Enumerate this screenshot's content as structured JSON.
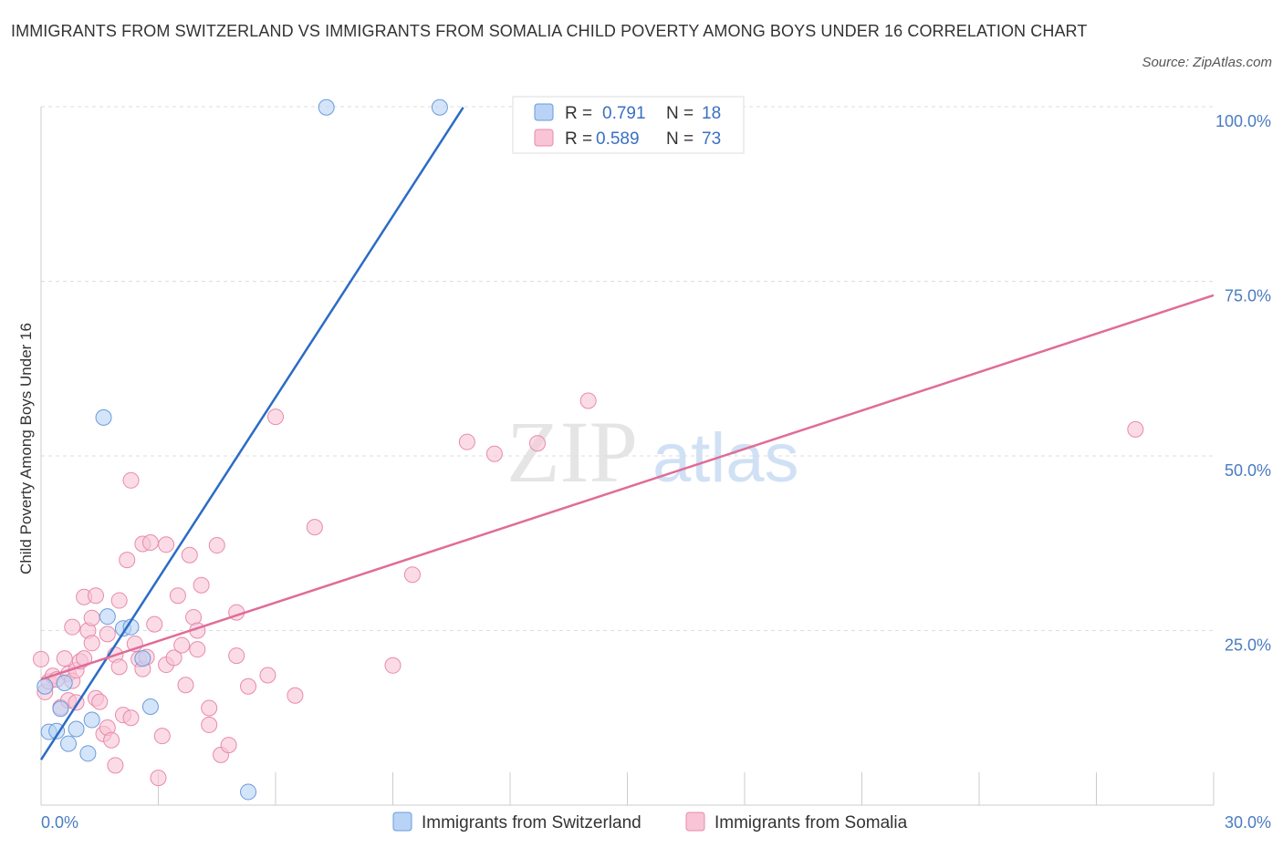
{
  "header": {
    "title": "IMMIGRANTS FROM SWITZERLAND VS IMMIGRANTS FROM SOMALIA CHILD POVERTY AMONG BOYS UNDER 16 CORRELATION CHART",
    "source": "Source: ZipAtlas.com"
  },
  "watermark": {
    "zip": "ZIP",
    "atlas": "atlas"
  },
  "colors": {
    "blue_fill": "#b8d3f5",
    "blue_stroke": "#6a9bdc",
    "blue_line": "#2b6cc4",
    "pink_fill": "#f8c4d6",
    "pink_stroke": "#e88aab",
    "pink_line": "#e06c98",
    "grid": "#dddddd",
    "tick_text": "#4a7cc0"
  },
  "legend_box": {
    "rows": [
      {
        "r_label": "R =",
        "r_value": "0.791",
        "n_label": "N =",
        "n_value": "18"
      },
      {
        "r_label": "R =",
        "r_value": "0.589",
        "n_label": "N =",
        "n_value": "73"
      }
    ]
  },
  "chart_data": {
    "type": "scatter",
    "title": "IMMIGRANTS FROM SWITZERLAND VS IMMIGRANTS FROM SOMALIA CHILD POVERTY AMONG BOYS UNDER 16 CORRELATION CHART",
    "xlabel": "",
    "ylabel": "Child Poverty Among Boys Under 16",
    "xlim": [
      0,
      30
    ],
    "ylim": [
      0,
      100
    ],
    "x_tick_labels": [
      "0.0%",
      "30.0%"
    ],
    "y_tick_labels": [
      "100.0%",
      "75.0%",
      "50.0%",
      "25.0%"
    ],
    "y_tick_values": [
      100,
      75,
      50,
      25
    ],
    "grid": true,
    "legend_position": "top-center",
    "series": [
      {
        "name": "Immigrants from Switzerland",
        "color": "blue",
        "trend": [
          [
            0,
            6.5
          ],
          [
            10.8,
            99.9
          ]
        ],
        "points": [
          [
            0.1,
            17
          ],
          [
            0.2,
            10.5
          ],
          [
            0.4,
            10.6
          ],
          [
            0.5,
            13.8
          ],
          [
            0.6,
            17.5
          ],
          [
            0.7,
            8.8
          ],
          [
            0.9,
            10.9
          ],
          [
            1.2,
            7.4
          ],
          [
            1.3,
            12.2
          ],
          [
            1.6,
            55.5
          ],
          [
            1.7,
            27
          ],
          [
            2.1,
            25.3
          ],
          [
            2.3,
            25.5
          ],
          [
            2.6,
            21
          ],
          [
            2.8,
            14.1
          ],
          [
            5.3,
            1.9
          ],
          [
            7.3,
            99.9
          ],
          [
            10.2,
            99.9
          ]
        ]
      },
      {
        "name": "Immigrants from Somalia",
        "color": "pink",
        "trend": [
          [
            0,
            18
          ],
          [
            30,
            73
          ]
        ],
        "points": [
          [
            0.0,
            20.9
          ],
          [
            0.1,
            16.2
          ],
          [
            0.2,
            17.7
          ],
          [
            0.3,
            18.5
          ],
          [
            0.4,
            18.0
          ],
          [
            0.5,
            14.0
          ],
          [
            0.6,
            21.0
          ],
          [
            0.7,
            15.0
          ],
          [
            0.7,
            18.8
          ],
          [
            0.8,
            17.8
          ],
          [
            0.8,
            25.5
          ],
          [
            0.9,
            14.7
          ],
          [
            0.9,
            19.3
          ],
          [
            1.0,
            20.6
          ],
          [
            1.1,
            21.0
          ],
          [
            1.1,
            29.8
          ],
          [
            1.2,
            25.0
          ],
          [
            1.3,
            23.2
          ],
          [
            1.3,
            26.8
          ],
          [
            1.4,
            30.0
          ],
          [
            1.4,
            15.3
          ],
          [
            1.5,
            14.8
          ],
          [
            1.6,
            10.2
          ],
          [
            1.7,
            11.1
          ],
          [
            1.7,
            24.5
          ],
          [
            1.8,
            9.3
          ],
          [
            1.9,
            21.5
          ],
          [
            1.9,
            5.7
          ],
          [
            2.0,
            29.3
          ],
          [
            2.0,
            19.8
          ],
          [
            2.1,
            12.9
          ],
          [
            2.2,
            35.1
          ],
          [
            2.3,
            12.5
          ],
          [
            2.3,
            46.5
          ],
          [
            2.4,
            23.1
          ],
          [
            2.5,
            20.9
          ],
          [
            2.6,
            19.5
          ],
          [
            2.6,
            37.4
          ],
          [
            2.7,
            21.2
          ],
          [
            2.8,
            37.6
          ],
          [
            2.9,
            25.9
          ],
          [
            3.0,
            3.9
          ],
          [
            3.1,
            9.9
          ],
          [
            3.2,
            20.1
          ],
          [
            3.2,
            37.3
          ],
          [
            3.4,
            21.1
          ],
          [
            3.5,
            30.0
          ],
          [
            3.6,
            22.9
          ],
          [
            3.7,
            17.2
          ],
          [
            3.8,
            35.8
          ],
          [
            3.9,
            26.9
          ],
          [
            4.0,
            22.3
          ],
          [
            4.0,
            25.0
          ],
          [
            4.1,
            31.5
          ],
          [
            4.3,
            13.9
          ],
          [
            4.3,
            11.5
          ],
          [
            4.5,
            37.2
          ],
          [
            4.6,
            7.2
          ],
          [
            4.8,
            8.6
          ],
          [
            5.0,
            27.6
          ],
          [
            5.0,
            21.4
          ],
          [
            5.3,
            17.0
          ],
          [
            5.8,
            18.6
          ],
          [
            6.0,
            55.6
          ],
          [
            6.5,
            15.7
          ],
          [
            7.0,
            39.8
          ],
          [
            9.0,
            20.0
          ],
          [
            9.5,
            33.0
          ],
          [
            10.9,
            52.0
          ],
          [
            11.6,
            50.3
          ],
          [
            12.7,
            51.8
          ],
          [
            14.0,
            57.9
          ],
          [
            28.0,
            53.8
          ]
        ]
      }
    ]
  },
  "bottom_legend": {
    "items": [
      {
        "label": "Immigrants from Switzerland"
      },
      {
        "label": "Immigrants from Somalia"
      }
    ]
  }
}
